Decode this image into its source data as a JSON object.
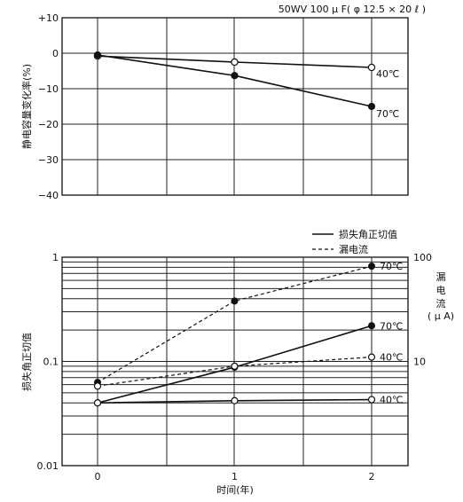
{
  "header_note": "50WV 100 μ F( φ 12.5 × 20 ℓ )",
  "chart_data": [
    {
      "type": "line",
      "ylabel": "静电容量变化率(%)",
      "xlim": [
        0,
        2
      ],
      "ylim": [
        -40,
        10
      ],
      "y_ticks": [
        "+10",
        "0",
        "−10",
        "−20",
        "−30",
        "−40"
      ],
      "series": [
        {
          "name": "40℃",
          "marker": "open",
          "x": [
            0,
            1,
            2
          ],
          "values": [
            -0.8,
            -2.5,
            -4
          ]
        },
        {
          "name": "70℃",
          "marker": "filled",
          "x": [
            0,
            1,
            2
          ],
          "values": [
            -0.5,
            -6.3,
            -15
          ]
        }
      ]
    },
    {
      "type": "line",
      "xlabel": "时间(年)",
      "ylabel": "损失角正切值",
      "y2label_chars": [
        "漏",
        "电",
        "流"
      ],
      "y2label_unit": "( μ A)",
      "y_scale": "log",
      "ylim": [
        0.01,
        1
      ],
      "y_ticks": [
        "1",
        "0.1",
        "0.01"
      ],
      "y2_ticks": [
        "100",
        "10"
      ],
      "x_ticks": [
        "0",
        "1",
        "2"
      ],
      "legend": [
        {
          "style": "solid",
          "label": "损失角正切值"
        },
        {
          "style": "dashed",
          "label": "漏电流"
        }
      ],
      "series": [
        {
          "name": "70℃",
          "kind": "tan δ",
          "style": "solid",
          "marker": "filled",
          "x": [
            0,
            1,
            2
          ],
          "values": [
            0.04,
            0.088,
            0.22
          ]
        },
        {
          "name": "40℃",
          "kind": "tan δ",
          "style": "solid",
          "marker": "open",
          "x": [
            0,
            1,
            2
          ],
          "values": [
            0.04,
            0.042,
            0.043
          ]
        },
        {
          "name": "70℃",
          "kind": "leakage current (μA)",
          "style": "dashed",
          "marker": "filled",
          "x": [
            0,
            1,
            2
          ],
          "values": [
            6.3,
            38,
            82
          ]
        },
        {
          "name": "40℃",
          "kind": "leakage current (μA)",
          "style": "dashed",
          "marker": "open",
          "x": [
            0,
            1,
            2
          ],
          "values": [
            5.8,
            9,
            11
          ]
        }
      ]
    }
  ]
}
